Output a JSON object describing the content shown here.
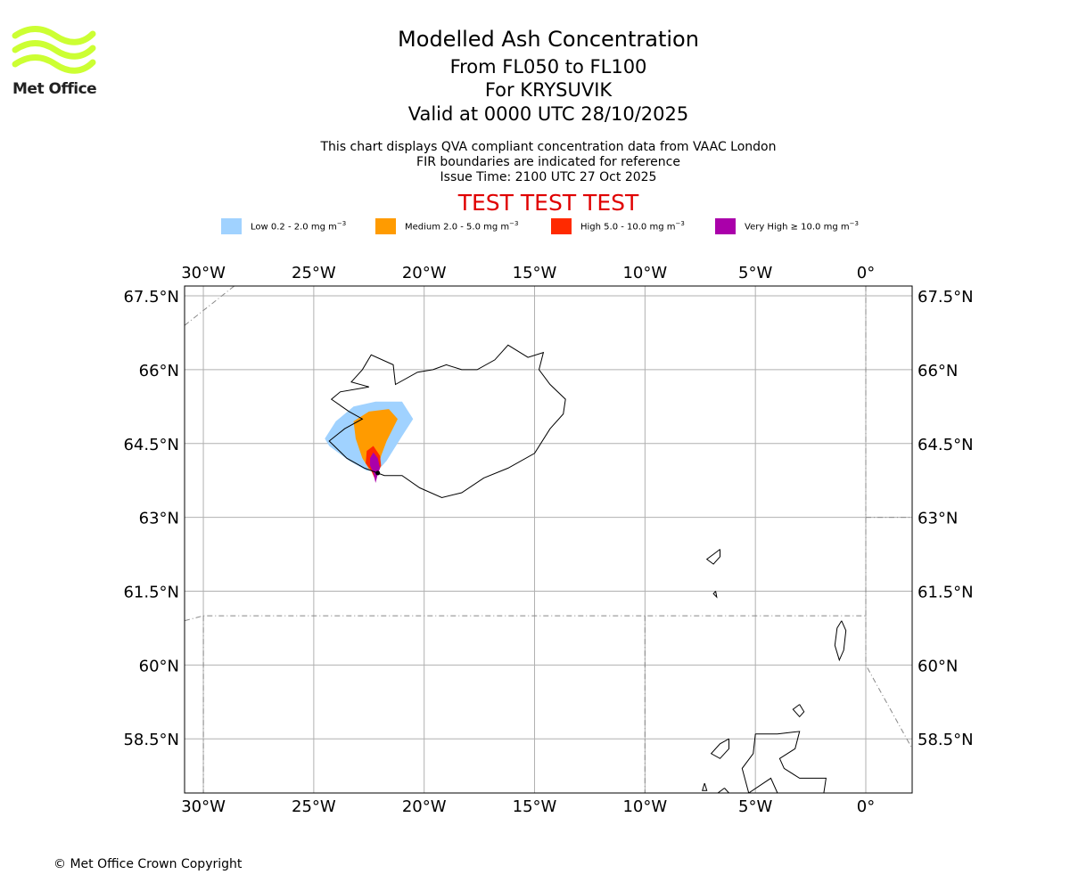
{
  "logo": {
    "text": "Met Office",
    "color": "#ccff33"
  },
  "title": {
    "line1": "Modelled Ash Concentration",
    "line2": "From FL050 to FL100",
    "line3": "For KRYSUVIK",
    "line4": "Valid at 0000 UTC 28/10/2025"
  },
  "subtitle": {
    "line1": "This chart displays QVA compliant concentration data from VAAC London",
    "line2": "FIR boundaries are indicated for reference",
    "line3": "Issue Time: 2100 UTC 27 Oct 2025"
  },
  "test_banner": {
    "text": "TEST TEST TEST",
    "color": "#e00000"
  },
  "legend": [
    {
      "label": "Low 0.2 - 2.0 mg m",
      "unit_sup": "−3",
      "color": "#a0d2ff"
    },
    {
      "label": "Medium 2.0 - 5.0 mg m",
      "unit_sup": "−3",
      "color": "#ff9b00"
    },
    {
      "label": "High 5.0 - 10.0 mg m",
      "unit_sup": "−3",
      "color": "#ff2a00"
    },
    {
      "label": "Very High ≥ 10.0 mg m",
      "unit_sup": "−3",
      "color": "#aa00aa"
    }
  ],
  "chart_data": {
    "type": "map",
    "projection": "equirectangular",
    "lon_range": [
      -30.85,
      2.1
    ],
    "lat_range": [
      57.4,
      67.7
    ],
    "lon_ticks": [
      -30,
      -25,
      -20,
      -15,
      -10,
      -5,
      0
    ],
    "lon_tick_labels": [
      "30°W",
      "25°W",
      "20°W",
      "15°W",
      "10°W",
      "5°W",
      "0°"
    ],
    "lat_ticks": [
      67.5,
      66,
      64.5,
      63,
      61.5,
      60,
      58.5
    ],
    "lat_tick_labels": [
      "67.5°N",
      "66°N",
      "64.5°N",
      "63°N",
      "61.5°N",
      "60°N",
      "58.5°N"
    ],
    "grid": true,
    "ash_levels": [
      {
        "level": "Low",
        "polygon": [
          [
            -24.5,
            64.6
          ],
          [
            -24.0,
            64.95
          ],
          [
            -23.2,
            65.25
          ],
          [
            -22.2,
            65.35
          ],
          [
            -21.0,
            65.35
          ],
          [
            -20.5,
            65.0
          ],
          [
            -21.0,
            64.65
          ],
          [
            -21.7,
            64.15
          ],
          [
            -22.1,
            63.95
          ],
          [
            -22.6,
            63.95
          ],
          [
            -23.4,
            64.15
          ],
          [
            -24.3,
            64.45
          ]
        ]
      },
      {
        "level": "Medium",
        "polygon": [
          [
            -23.2,
            64.95
          ],
          [
            -22.5,
            65.15
          ],
          [
            -21.6,
            65.2
          ],
          [
            -21.2,
            65.0
          ],
          [
            -21.7,
            64.55
          ],
          [
            -21.95,
            64.25
          ],
          [
            -22.1,
            64.0
          ],
          [
            -22.5,
            63.98
          ],
          [
            -22.8,
            64.2
          ],
          [
            -23.1,
            64.6
          ]
        ]
      },
      {
        "level": "High",
        "polygon": [
          [
            -22.6,
            64.35
          ],
          [
            -22.3,
            64.45
          ],
          [
            -22.0,
            64.25
          ],
          [
            -21.95,
            64.05
          ],
          [
            -22.1,
            63.9
          ],
          [
            -22.2,
            63.75
          ],
          [
            -22.4,
            63.95
          ],
          [
            -22.65,
            64.1
          ]
        ]
      },
      {
        "level": "Very High",
        "polygon": [
          [
            -22.45,
            64.2
          ],
          [
            -22.3,
            64.32
          ],
          [
            -22.1,
            64.2
          ],
          [
            -22.0,
            64.0
          ],
          [
            -22.1,
            63.88
          ],
          [
            -22.2,
            63.7
          ],
          [
            -22.3,
            63.9
          ],
          [
            -22.45,
            64.05
          ]
        ]
      }
    ],
    "coastlines": [
      [
        [
          -22.7,
          64.0
        ],
        [
          -23.5,
          64.2
        ],
        [
          -24.3,
          64.55
        ],
        [
          -23.6,
          64.8
        ],
        [
          -22.8,
          65.0
        ],
        [
          -23.4,
          65.15
        ],
        [
          -24.2,
          65.4
        ],
        [
          -23.8,
          65.55
        ],
        [
          -22.5,
          65.65
        ],
        [
          -23.3,
          65.75
        ],
        [
          -22.8,
          66.0
        ],
        [
          -22.4,
          66.3
        ],
        [
          -21.4,
          66.1
        ],
        [
          -21.3,
          65.7
        ],
        [
          -20.3,
          65.95
        ],
        [
          -19.6,
          66.0
        ],
        [
          -19.0,
          66.1
        ],
        [
          -18.3,
          66.0
        ],
        [
          -17.6,
          66.0
        ],
        [
          -16.8,
          66.2
        ],
        [
          -16.2,
          66.5
        ],
        [
          -15.3,
          66.25
        ],
        [
          -14.6,
          66.35
        ],
        [
          -14.8,
          66.0
        ],
        [
          -14.3,
          65.7
        ],
        [
          -13.6,
          65.4
        ],
        [
          -13.7,
          65.1
        ],
        [
          -14.3,
          64.8
        ],
        [
          -15.0,
          64.3
        ],
        [
          -16.2,
          64.0
        ],
        [
          -17.3,
          63.8
        ],
        [
          -18.3,
          63.5
        ],
        [
          -19.2,
          63.4
        ],
        [
          -20.2,
          63.6
        ],
        [
          -21.0,
          63.85
        ],
        [
          -21.8,
          63.85
        ],
        [
          -22.7,
          64.0
        ]
      ],
      [
        [
          -6.6,
          62.35
        ],
        [
          -6.9,
          62.25
        ],
        [
          -7.2,
          62.15
        ],
        [
          -6.9,
          62.05
        ],
        [
          -6.6,
          62.2
        ],
        [
          -6.6,
          62.35
        ]
      ],
      [
        [
          -6.8,
          61.5
        ],
        [
          -6.9,
          61.45
        ],
        [
          -6.75,
          61.38
        ],
        [
          -6.8,
          61.5
        ]
      ],
      [
        [
          -1.1,
          60.9
        ],
        [
          -1.3,
          60.75
        ],
        [
          -1.4,
          60.4
        ],
        [
          -1.2,
          60.1
        ],
        [
          -1.0,
          60.3
        ],
        [
          -0.9,
          60.7
        ],
        [
          -1.1,
          60.9
        ]
      ],
      [
        [
          -3.0,
          59.2
        ],
        [
          -3.3,
          59.1
        ],
        [
          -3.0,
          58.95
        ],
        [
          -2.8,
          59.05
        ],
        [
          -3.0,
          59.2
        ]
      ],
      [
        [
          -5.0,
          58.6
        ],
        [
          -4.0,
          58.6
        ],
        [
          -3.0,
          58.65
        ],
        [
          -3.2,
          58.3
        ],
        [
          -3.9,
          58.1
        ],
        [
          -3.7,
          57.9
        ],
        [
          -3.0,
          57.7
        ],
        [
          -1.8,
          57.7
        ],
        [
          -1.9,
          57.4
        ],
        [
          -4.0,
          57.4
        ],
        [
          -4.3,
          57.7
        ],
        [
          -5.3,
          57.4
        ],
        [
          -5.6,
          57.9
        ],
        [
          -5.1,
          58.2
        ],
        [
          -5.0,
          58.6
        ]
      ],
      [
        [
          -6.2,
          58.5
        ],
        [
          -6.6,
          58.4
        ],
        [
          -7.0,
          58.2
        ],
        [
          -6.6,
          58.1
        ],
        [
          -6.2,
          58.3
        ],
        [
          -6.2,
          58.5
        ]
      ],
      [
        [
          -7.3,
          57.6
        ],
        [
          -7.4,
          57.45
        ],
        [
          -7.2,
          57.45
        ],
        [
          -7.3,
          57.6
        ]
      ],
      [
        [
          -6.4,
          57.5
        ],
        [
          -6.7,
          57.4
        ],
        [
          -6.2,
          57.4
        ],
        [
          -6.4,
          57.5
        ]
      ]
    ],
    "fir_boundaries": [
      [
        [
          -30.85,
          60.9
        ],
        [
          -30.0,
          61.0
        ],
        [
          0.0,
          61.0
        ]
      ],
      [
        [
          -30.85,
          66.9
        ],
        [
          -28.6,
          67.7
        ]
      ],
      [
        [
          -30.0,
          61.0
        ],
        [
          -30.0,
          57.4
        ]
      ],
      [
        [
          -10.0,
          61.0
        ],
        [
          -10.0,
          57.4
        ]
      ],
      [
        [
          0.0,
          67.7
        ],
        [
          0.0,
          60.0
        ],
        [
          2.1,
          58.3
        ]
      ],
      [
        [
          0.0,
          63.0
        ],
        [
          2.1,
          63.0
        ]
      ]
    ],
    "volcano": {
      "name": "KRYSUVIK",
      "lon": -22.1,
      "lat": 63.9
    }
  },
  "copyright": "© Met Office Crown Copyright"
}
